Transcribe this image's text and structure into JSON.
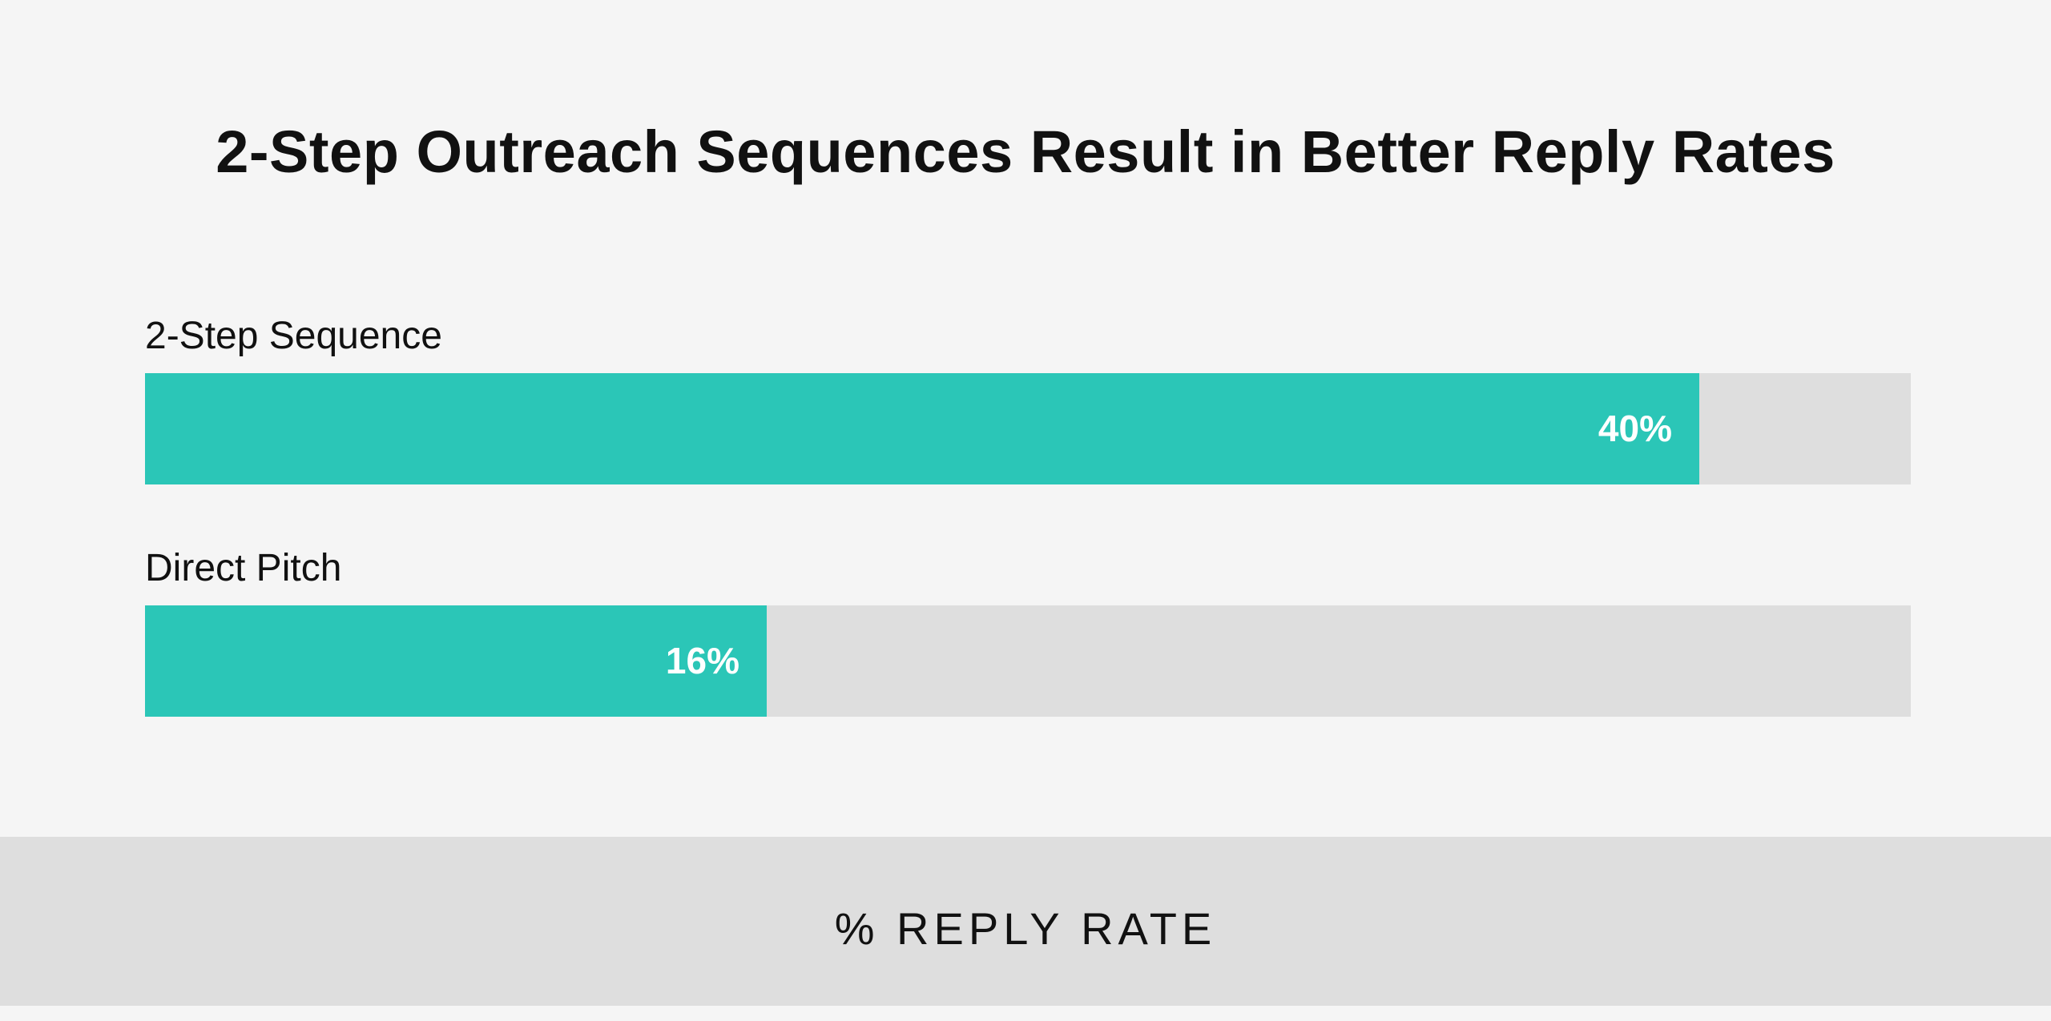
{
  "chart_data": {
    "type": "bar",
    "orientation": "horizontal",
    "title": "2-Step Outreach Sequences Result in Better Reply Rates",
    "categories": [
      "2-Step Sequence",
      "Direct Pitch"
    ],
    "values": [
      40,
      16
    ],
    "value_labels": [
      "40%",
      "16%"
    ],
    "xlabel": "% REPLY RATE",
    "ylabel": "",
    "xlim": [
      0,
      100
    ],
    "grid": false,
    "colors": {
      "bar": "#2bc6b7",
      "track": "#dedede",
      "background": "#f5f5f5",
      "footer": "#dedede",
      "text": "#111111",
      "value_text": "#ffffff"
    }
  }
}
